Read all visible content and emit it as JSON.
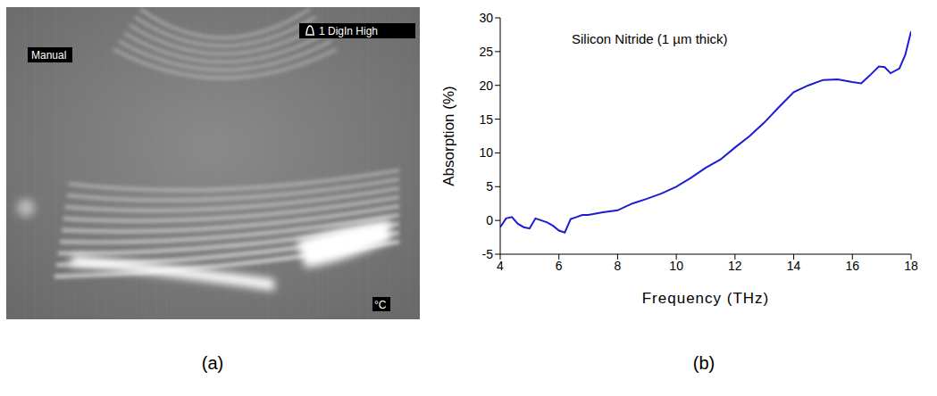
{
  "panel_labels": [
    "(a)",
    "(b)"
  ],
  "image_panel": {
    "texts": [
      "Manual",
      "1 DigIn High",
      "°C"
    ]
  },
  "chart_data": {
    "type": "line",
    "x_label": "Frequency (THz)",
    "y_label": "Absorption (%)",
    "annotations": [
      "Silicon Nitride (1 µm thick)"
    ],
    "color": "#1c1cd6",
    "xlim": [
      4,
      18
    ],
    "xticks": [
      4,
      6,
      8,
      10,
      12,
      14,
      16,
      18
    ],
    "ylim": [
      -5,
      30
    ],
    "yticks": [
      -5,
      0,
      5,
      10,
      15,
      20,
      25,
      30
    ],
    "grid": false,
    "x": [
      4.0,
      4.2,
      4.4,
      4.6,
      4.8,
      5.0,
      5.2,
      5.4,
      5.6,
      5.8,
      6.0,
      6.2,
      6.4,
      6.6,
      6.8,
      7.0,
      7.5,
      8.0,
      8.5,
      9.0,
      9.5,
      10.0,
      10.5,
      11.0,
      11.5,
      12.0,
      12.5,
      13.0,
      13.5,
      14.0,
      14.5,
      15.0,
      15.5,
      16.0,
      16.3,
      16.6,
      16.9,
      17.1,
      17.3,
      17.6,
      17.8,
      18.0
    ],
    "values": [
      -1.0,
      0.3,
      0.5,
      -0.5,
      -1.0,
      -1.2,
      0.3,
      0.0,
      -0.3,
      -0.8,
      -1.5,
      -1.8,
      0.2,
      0.5,
      0.8,
      0.8,
      1.2,
      1.5,
      2.5,
      3.2,
      4.0,
      5.0,
      6.3,
      7.8,
      9.0,
      10.8,
      12.5,
      14.5,
      16.8,
      19.0,
      20.0,
      20.8,
      20.9,
      20.5,
      20.3,
      21.5,
      22.8,
      22.7,
      21.8,
      22.5,
      24.5,
      28.0
    ]
  }
}
